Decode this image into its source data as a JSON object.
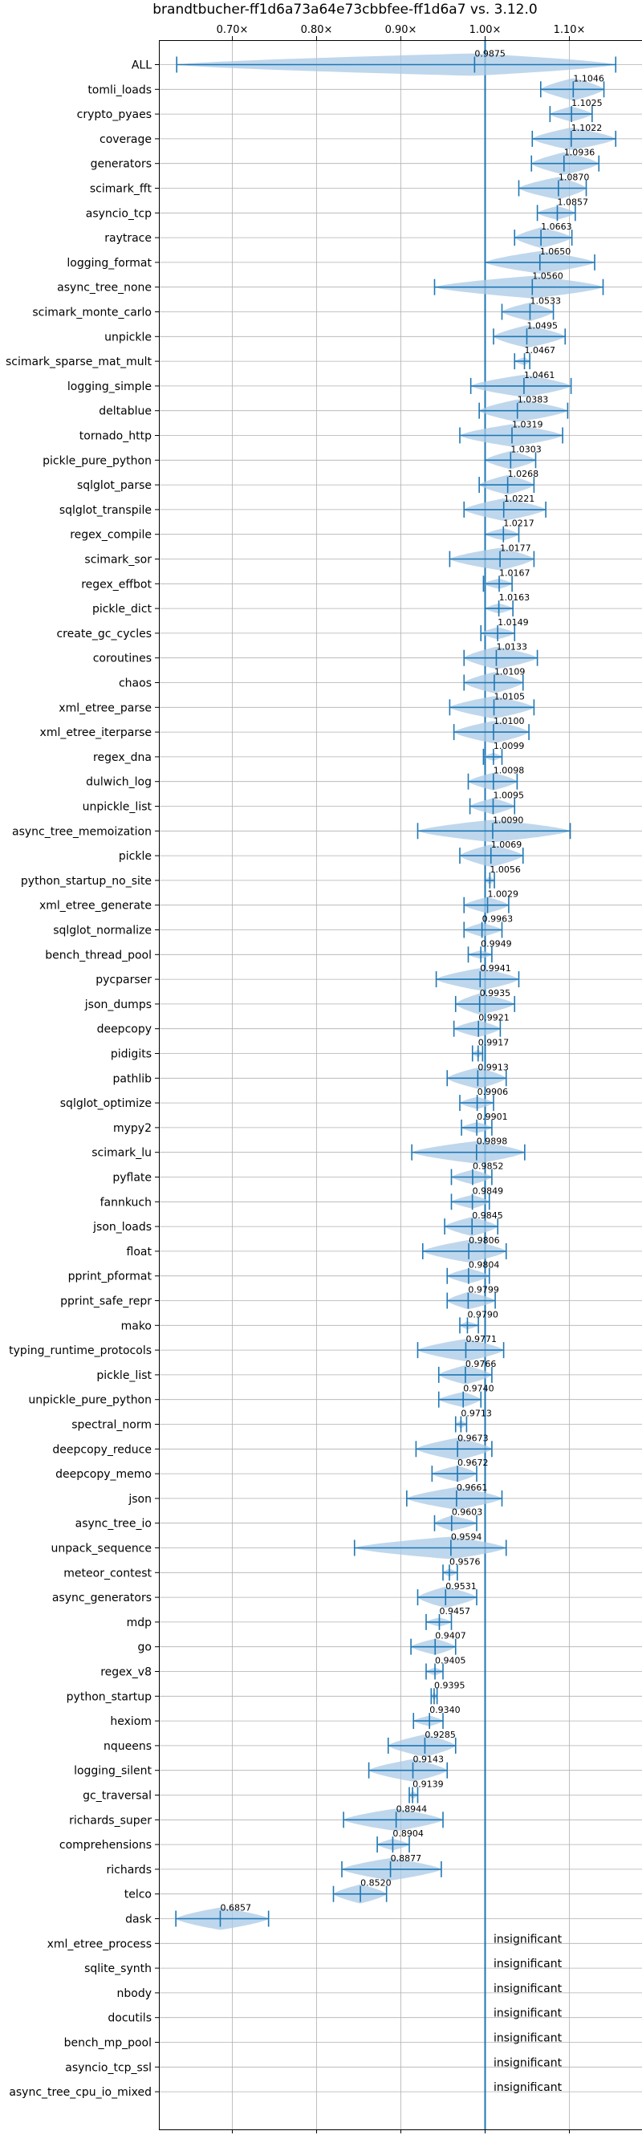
{
  "chart_data": {
    "type": "violin",
    "title": "brandtbucher-ff1d6a73a64e73cbbfee-ff1d6a7 vs. 3.12.0",
    "xlim": [
      0.625,
      1.17
    ],
    "xticks": [
      0.7,
      0.8,
      0.9,
      1.0,
      1.1
    ],
    "xtick_labels": [
      "0.70×",
      "0.80×",
      "0.90×",
      "1.00×",
      "1.10×"
    ],
    "reference_line": 1.0,
    "grid": true,
    "colors": {
      "line": "#1f77b4",
      "violin": "#aac9e6",
      "grid": "#b0b0b0",
      "frame": "#000000"
    },
    "insignificant_label": "insignificant",
    "benchmarks": [
      {
        "name": "ALL",
        "median": 0.9875,
        "min": 0.634,
        "max": 1.155
      },
      {
        "name": "tomli_loads",
        "median": 1.1046,
        "min": 1.066,
        "max": 1.141
      },
      {
        "name": "crypto_pyaes",
        "median": 1.1025,
        "min": 1.077,
        "max": 1.127
      },
      {
        "name": "coverage",
        "median": 1.1022,
        "min": 1.056,
        "max": 1.155
      },
      {
        "name": "generators",
        "median": 1.0936,
        "min": 1.055,
        "max": 1.135
      },
      {
        "name": "scimark_fft",
        "median": 1.087,
        "min": 1.04,
        "max": 1.12
      },
      {
        "name": "asyncio_tcp",
        "median": 1.0857,
        "min": 1.062,
        "max": 1.107
      },
      {
        "name": "raytrace",
        "median": 1.0663,
        "min": 1.035,
        "max": 1.103
      },
      {
        "name": "logging_format",
        "median": 1.065,
        "min": 1.0,
        "max": 1.13
      },
      {
        "name": "async_tree_none",
        "median": 1.056,
        "min": 0.94,
        "max": 1.14
      },
      {
        "name": "scimark_monte_carlo",
        "median": 1.0533,
        "min": 1.02,
        "max": 1.081
      },
      {
        "name": "unpickle",
        "median": 1.0495,
        "min": 1.01,
        "max": 1.095
      },
      {
        "name": "scimark_sparse_mat_mult",
        "median": 1.0467,
        "min": 1.035,
        "max": 1.053
      },
      {
        "name": "logging_simple",
        "median": 1.0461,
        "min": 0.983,
        "max": 1.102
      },
      {
        "name": "deltablue",
        "median": 1.0383,
        "min": 0.993,
        "max": 1.098
      },
      {
        "name": "tornado_http",
        "median": 1.0319,
        "min": 0.97,
        "max": 1.092
      },
      {
        "name": "pickle_pure_python",
        "median": 1.0303,
        "min": 1.0,
        "max": 1.06
      },
      {
        "name": "sqlglot_parse",
        "median": 1.0268,
        "min": 0.993,
        "max": 1.058
      },
      {
        "name": "sqlglot_transpile",
        "median": 1.0221,
        "min": 0.975,
        "max": 1.072
      },
      {
        "name": "regex_compile",
        "median": 1.0217,
        "min": 1.0,
        "max": 1.04
      },
      {
        "name": "scimark_sor",
        "median": 1.0177,
        "min": 0.958,
        "max": 1.058
      },
      {
        "name": "regex_effbot",
        "median": 1.0167,
        "min": 0.998,
        "max": 1.032
      },
      {
        "name": "pickle_dict",
        "median": 1.0163,
        "min": 1.0,
        "max": 1.033
      },
      {
        "name": "create_gc_cycles",
        "median": 1.0149,
        "min": 0.995,
        "max": 1.035
      },
      {
        "name": "coroutines",
        "median": 1.0133,
        "min": 0.975,
        "max": 1.062
      },
      {
        "name": "chaos",
        "median": 1.0109,
        "min": 0.975,
        "max": 1.045
      },
      {
        "name": "xml_etree_parse",
        "median": 1.0105,
        "min": 0.958,
        "max": 1.058
      },
      {
        "name": "xml_etree_iterparse",
        "median": 1.01,
        "min": 0.963,
        "max": 1.052
      },
      {
        "name": "regex_dna",
        "median": 1.0099,
        "min": 0.998,
        "max": 1.02
      },
      {
        "name": "dulwich_log",
        "median": 1.0098,
        "min": 0.98,
        "max": 1.038
      },
      {
        "name": "unpickle_list",
        "median": 1.0095,
        "min": 0.982,
        "max": 1.035
      },
      {
        "name": "async_tree_memoization",
        "median": 1.009,
        "min": 0.92,
        "max": 1.101
      },
      {
        "name": "pickle",
        "median": 1.0069,
        "min": 0.97,
        "max": 1.045
      },
      {
        "name": "python_startup_no_site",
        "median": 1.0056,
        "min": 1.0,
        "max": 1.011
      },
      {
        "name": "xml_etree_generate",
        "median": 1.0029,
        "min": 0.975,
        "max": 1.028
      },
      {
        "name": "sqlglot_normalize",
        "median": 0.9963,
        "min": 0.975,
        "max": 1.02
      },
      {
        "name": "bench_thread_pool",
        "median": 0.9949,
        "min": 0.98,
        "max": 1.008
      },
      {
        "name": "pycparser",
        "median": 0.9941,
        "min": 0.942,
        "max": 1.04
      },
      {
        "name": "json_dumps",
        "median": 0.9935,
        "min": 0.965,
        "max": 1.035
      },
      {
        "name": "deepcopy",
        "median": 0.9921,
        "min": 0.963,
        "max": 1.018
      },
      {
        "name": "pidigits",
        "median": 0.9917,
        "min": 0.985,
        "max": 0.997
      },
      {
        "name": "pathlib",
        "median": 0.9913,
        "min": 0.955,
        "max": 1.025
      },
      {
        "name": "sqlglot_optimize",
        "median": 0.9906,
        "min": 0.97,
        "max": 1.01
      },
      {
        "name": "mypy2",
        "median": 0.9901,
        "min": 0.972,
        "max": 1.008
      },
      {
        "name": "scimark_lu",
        "median": 0.9898,
        "min": 0.913,
        "max": 1.047
      },
      {
        "name": "pyflate",
        "median": 0.9852,
        "min": 0.96,
        "max": 1.008
      },
      {
        "name": "fannkuch",
        "median": 0.9849,
        "min": 0.96,
        "max": 1.005
      },
      {
        "name": "json_loads",
        "median": 0.9845,
        "min": 0.952,
        "max": 1.015
      },
      {
        "name": "float",
        "median": 0.9806,
        "min": 0.926,
        "max": 1.025
      },
      {
        "name": "pprint_pformat",
        "median": 0.9804,
        "min": 0.955,
        "max": 1.005
      },
      {
        "name": "pprint_safe_repr",
        "median": 0.9799,
        "min": 0.955,
        "max": 1.012
      },
      {
        "name": "mako",
        "median": 0.979,
        "min": 0.97,
        "max": 0.992
      },
      {
        "name": "typing_runtime_protocols",
        "median": 0.9771,
        "min": 0.92,
        "max": 1.022
      },
      {
        "name": "pickle_list",
        "median": 0.9766,
        "min": 0.945,
        "max": 1.008
      },
      {
        "name": "unpickle_pure_python",
        "median": 0.974,
        "min": 0.945,
        "max": 0.995
      },
      {
        "name": "spectral_norm",
        "median": 0.9713,
        "min": 0.965,
        "max": 0.978
      },
      {
        "name": "deepcopy_reduce",
        "median": 0.9673,
        "min": 0.918,
        "max": 1.008
      },
      {
        "name": "deepcopy_memo",
        "median": 0.9672,
        "min": 0.937,
        "max": 0.99
      },
      {
        "name": "json",
        "median": 0.9661,
        "min": 0.907,
        "max": 1.02
      },
      {
        "name": "async_tree_io",
        "median": 0.9603,
        "min": 0.94,
        "max": 0.99
      },
      {
        "name": "unpack_sequence",
        "median": 0.9594,
        "min": 0.845,
        "max": 1.025
      },
      {
        "name": "meteor_contest",
        "median": 0.9576,
        "min": 0.95,
        "max": 0.967
      },
      {
        "name": "async_generators",
        "median": 0.9531,
        "min": 0.92,
        "max": 0.99
      },
      {
        "name": "mdp",
        "median": 0.9457,
        "min": 0.93,
        "max": 0.96
      },
      {
        "name": "go",
        "median": 0.9407,
        "min": 0.912,
        "max": 0.965
      },
      {
        "name": "regex_v8",
        "median": 0.9405,
        "min": 0.93,
        "max": 0.95
      },
      {
        "name": "python_startup",
        "median": 0.9395,
        "min": 0.936,
        "max": 0.943
      },
      {
        "name": "hexiom",
        "median": 0.934,
        "min": 0.915,
        "max": 0.95
      },
      {
        "name": "nqueens",
        "median": 0.9285,
        "min": 0.885,
        "max": 0.965
      },
      {
        "name": "logging_silent",
        "median": 0.9143,
        "min": 0.862,
        "max": 0.955
      },
      {
        "name": "gc_traversal",
        "median": 0.9139,
        "min": 0.91,
        "max": 0.92
      },
      {
        "name": "richards_super",
        "median": 0.8944,
        "min": 0.832,
        "max": 0.95
      },
      {
        "name": "comprehensions",
        "median": 0.8904,
        "min": 0.872,
        "max": 0.91
      },
      {
        "name": "richards",
        "median": 0.8877,
        "min": 0.83,
        "max": 0.948
      },
      {
        "name": "telco",
        "median": 0.852,
        "min": 0.82,
        "max": 0.883
      },
      {
        "name": "dask",
        "median": 0.6857,
        "min": 0.633,
        "max": 0.743
      },
      {
        "name": "xml_etree_process",
        "median": null
      },
      {
        "name": "sqlite_synth",
        "median": null
      },
      {
        "name": "nbody",
        "median": null
      },
      {
        "name": "docutils",
        "median": null
      },
      {
        "name": "bench_mp_pool",
        "median": null
      },
      {
        "name": "asyncio_tcp_ssl",
        "median": null
      },
      {
        "name": "async_tree_cpu_io_mixed",
        "median": null
      }
    ]
  }
}
